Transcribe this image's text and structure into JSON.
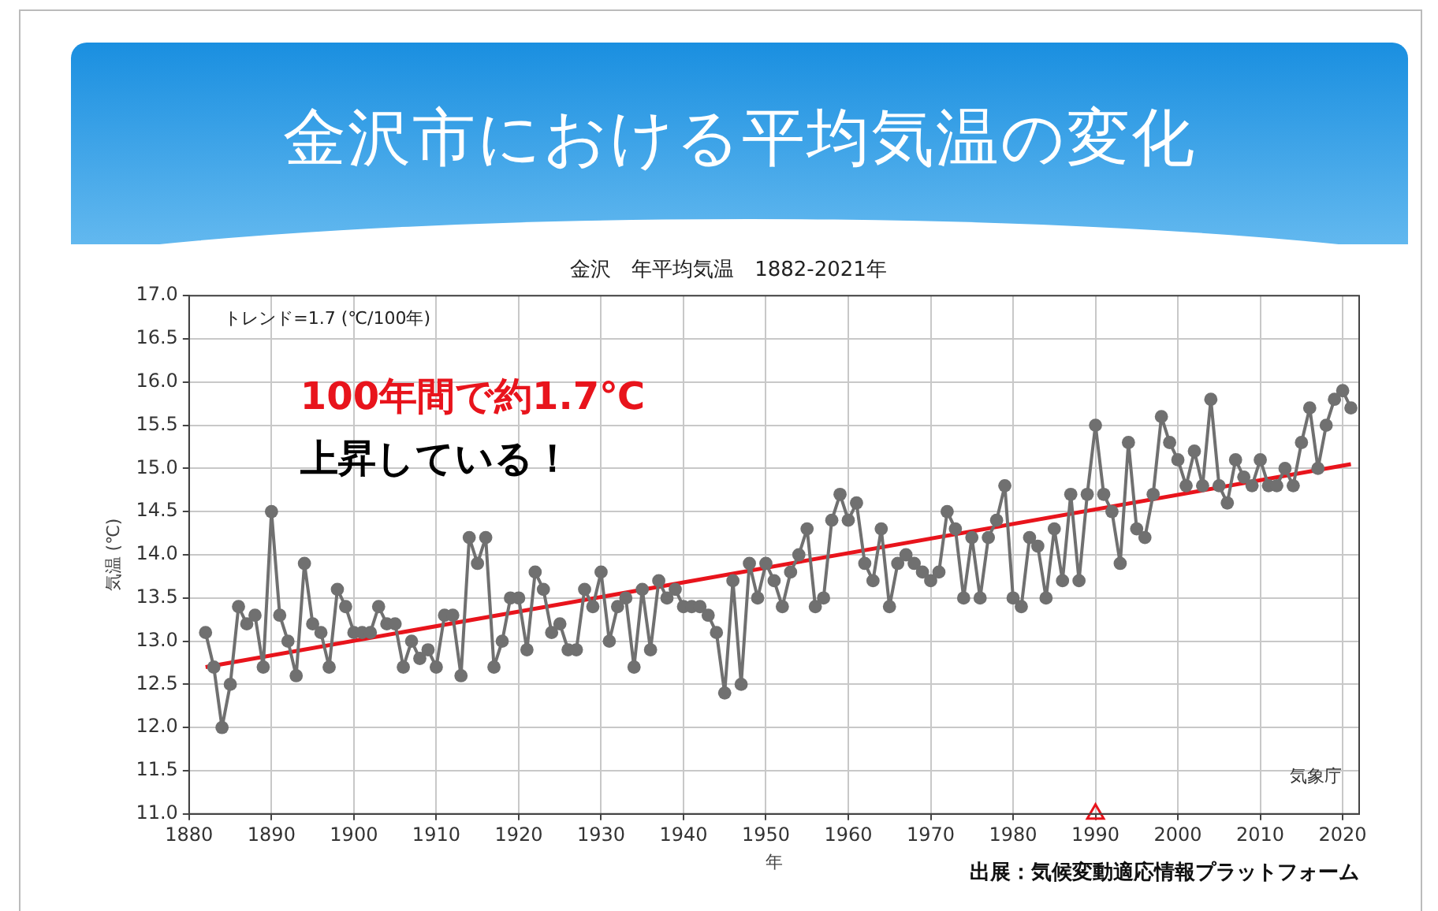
{
  "chart_data": {
    "type": "line",
    "title": "金沢市における平均気温の変化",
    "subtitle": "金沢　年平均気温　1882-2021年",
    "xlabel": "年",
    "ylabel": "気温 (℃)",
    "annotations": [
      "トレンド=1.7 (℃/100年)",
      "100年間で約1.7℃",
      "上昇している！",
      "気象庁",
      "出展：気候変動適応情報プラットフォーム"
    ],
    "xlim": [
      1880,
      2022
    ],
    "xticks": [
      1880,
      1890,
      1900,
      1910,
      1920,
      1930,
      1940,
      1950,
      1960,
      1970,
      1980,
      1990,
      2000,
      2010,
      2020
    ],
    "ylim": [
      11,
      17
    ],
    "yticks": [
      {
        "value": 11,
        "label": "11.0"
      },
      {
        "value": 11.5,
        "label": "11.5"
      },
      {
        "value": 12,
        "label": "12.0"
      },
      {
        "value": 12.5,
        "label": "12.5"
      },
      {
        "value": 13,
        "label": "13.0"
      },
      {
        "value": 13.5,
        "label": "13.5"
      },
      {
        "value": 14,
        "label": "14.0"
      },
      {
        "value": 14.5,
        "label": "14.5"
      },
      {
        "value": 15,
        "label": "15.0"
      },
      {
        "value": 15.5,
        "label": "15.5"
      },
      {
        "value": 16,
        "label": "16.0"
      },
      {
        "value": 16.5,
        "label": "16.5"
      },
      {
        "value": 17,
        "label": "17.0"
      }
    ],
    "grid": true,
    "series": [
      {
        "type": "line",
        "marker": "circle",
        "color": "#707070",
        "x": [
          1882,
          1883,
          1884,
          1885,
          1886,
          1887,
          1888,
          1889,
          1890,
          1891,
          1892,
          1893,
          1894,
          1895,
          1896,
          1897,
          1898,
          1899,
          1900,
          1901,
          1902,
          1903,
          1904,
          1905,
          1906,
          1907,
          1908,
          1909,
          1910,
          1911,
          1912,
          1913,
          1914,
          1915,
          1916,
          1917,
          1918,
          1919,
          1920,
          1921,
          1922,
          1923,
          1924,
          1925,
          1926,
          1927,
          1928,
          1929,
          1930,
          1931,
          1932,
          1933,
          1934,
          1935,
          1936,
          1937,
          1938,
          1939,
          1940,
          1941,
          1942,
          1943,
          1944,
          1945,
          1946,
          1947,
          1948,
          1949,
          1950,
          1951,
          1952,
          1953,
          1954,
          1955,
          1956,
          1957,
          1958,
          1959,
          1960,
          1961,
          1962,
          1963,
          1964,
          1965,
          1966,
          1967,
          1968,
          1969,
          1970,
          1971,
          1972,
          1973,
          1974,
          1975,
          1976,
          1977,
          1978,
          1979,
          1980,
          1981,
          1982,
          1983,
          1984,
          1985,
          1986,
          1987,
          1988,
          1989,
          1990,
          1991,
          1992,
          1993,
          1994,
          1995,
          1996,
          1997,
          1998,
          1999,
          2000,
          2001,
          2002,
          2003,
          2004,
          2005,
          2006,
          2007,
          2008,
          2009,
          2010,
          2011,
          2012,
          2013,
          2014,
          2015,
          2016,
          2017,
          2018,
          2019,
          2020,
          2021
        ],
        "values": [
          13.1,
          12.7,
          12.0,
          12.5,
          13.4,
          13.2,
          13.3,
          12.7,
          14.5,
          13.3,
          13.0,
          12.6,
          13.9,
          13.2,
          13.1,
          12.7,
          13.6,
          13.4,
          13.1,
          13.1,
          13.1,
          13.4,
          13.2,
          13.2,
          12.7,
          13.0,
          12.8,
          12.9,
          12.7,
          13.3,
          13.3,
          12.6,
          14.2,
          13.9,
          14.2,
          12.7,
          13.0,
          13.5,
          13.5,
          12.9,
          13.8,
          13.6,
          13.1,
          13.2,
          12.9,
          12.9,
          13.6,
          13.4,
          13.8,
          13.0,
          13.4,
          13.5,
          12.7,
          13.6,
          12.9,
          13.7,
          13.5,
          13.6,
          13.4,
          13.4,
          13.4,
          13.3,
          13.1,
          12.4,
          13.7,
          12.5,
          13.9,
          13.5,
          13.9,
          13.7,
          13.4,
          13.8,
          14.0,
          14.3,
          13.4,
          13.5,
          14.4,
          14.7,
          14.4,
          14.6,
          13.9,
          13.7,
          14.3,
          13.4,
          13.9,
          14.0,
          13.9,
          13.8,
          13.7,
          13.8,
          14.5,
          14.3,
          13.5,
          14.2,
          13.5,
          14.2,
          14.4,
          14.8,
          13.5,
          13.4,
          14.2,
          14.1,
          13.5,
          14.3,
          13.7,
          14.7,
          13.7,
          14.7,
          15.5,
          14.7,
          14.5,
          13.9,
          15.3,
          14.3,
          14.2,
          14.7,
          15.6,
          15.3,
          15.1,
          14.8,
          15.2,
          14.8,
          15.8,
          14.8,
          14.6,
          15.1,
          14.9,
          14.8,
          15.1,
          14.8,
          14.8,
          15.0,
          14.8,
          15.3,
          15.7,
          15.0,
          15.5,
          15.8,
          15.9,
          15.7
        ]
      },
      {
        "type": "line",
        "marker": "none",
        "color": "#e8141c",
        "x": [
          1882,
          2021
        ],
        "values": [
          12.7,
          15.05
        ]
      },
      {
        "type": "scatter",
        "marker": "triangle",
        "color": "#e8141c",
        "x": [
          1990
        ],
        "values": [
          11.0
        ]
      }
    ]
  }
}
